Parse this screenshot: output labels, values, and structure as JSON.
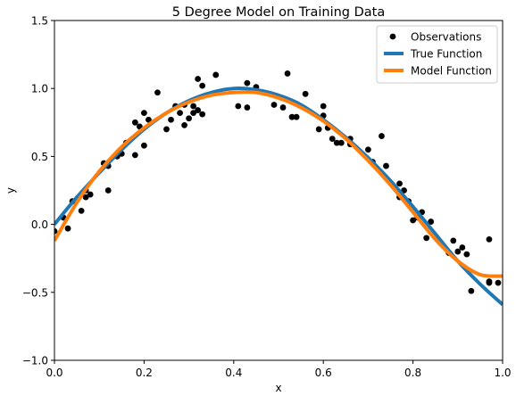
{
  "chart_data": {
    "type": "scatter",
    "title": "5 Degree Model on Training Data",
    "xlabel": "x",
    "ylabel": "y",
    "xlim": [
      0.0,
      1.0
    ],
    "ylim": [
      -1.0,
      1.5
    ],
    "xticks": [
      "0.0",
      "0.2",
      "0.4",
      "0.6",
      "0.8",
      "1.0"
    ],
    "yticks": [
      "−1.0",
      "−0.5",
      "0.0",
      "0.5",
      "1.0",
      "1.5"
    ],
    "xtick_values": [
      0.0,
      0.2,
      0.4,
      0.6,
      0.8,
      1.0
    ],
    "ytick_values": [
      -1.0,
      -0.5,
      0.0,
      0.5,
      1.0,
      1.5
    ],
    "grid": false,
    "legend_position": "top-right",
    "series": [
      {
        "name": "Observations",
        "kind": "scatter",
        "color": "#000000",
        "x": [
          0.0,
          0.02,
          0.03,
          0.04,
          0.06,
          0.07,
          0.07,
          0.08,
          0.11,
          0.12,
          0.12,
          0.14,
          0.15,
          0.16,
          0.18,
          0.18,
          0.19,
          0.2,
          0.2,
          0.21,
          0.23,
          0.25,
          0.26,
          0.27,
          0.28,
          0.29,
          0.29,
          0.3,
          0.31,
          0.31,
          0.32,
          0.32,
          0.33,
          0.33,
          0.36,
          0.41,
          0.43,
          0.43,
          0.45,
          0.49,
          0.51,
          0.52,
          0.53,
          0.54,
          0.56,
          0.59,
          0.6,
          0.6,
          0.61,
          0.62,
          0.63,
          0.64,
          0.66,
          0.66,
          0.7,
          0.71,
          0.73,
          0.74,
          0.77,
          0.77,
          0.78,
          0.79,
          0.8,
          0.81,
          0.82,
          0.83,
          0.84,
          0.88,
          0.89,
          0.9,
          0.91,
          0.92,
          0.93,
          0.97,
          0.97,
          0.97,
          0.99
        ],
        "y": [
          -0.05,
          0.05,
          -0.03,
          0.17,
          0.1,
          0.2,
          0.25,
          0.22,
          0.45,
          0.25,
          0.43,
          0.5,
          0.52,
          0.6,
          0.51,
          0.75,
          0.72,
          0.58,
          0.82,
          0.77,
          0.97,
          0.7,
          0.77,
          0.87,
          0.82,
          0.73,
          0.88,
          0.78,
          0.82,
          0.87,
          1.07,
          0.84,
          0.81,
          1.02,
          1.1,
          0.87,
          0.86,
          1.04,
          1.01,
          0.88,
          0.86,
          1.11,
          0.79,
          0.79,
          0.96,
          0.7,
          0.87,
          0.8,
          0.71,
          0.63,
          0.6,
          0.6,
          0.59,
          0.63,
          0.55,
          0.46,
          0.65,
          0.43,
          0.2,
          0.3,
          0.25,
          0.17,
          0.03,
          0.05,
          0.09,
          -0.1,
          0.02,
          -0.21,
          -0.12,
          -0.2,
          -0.17,
          -0.22,
          -0.49,
          -0.11,
          -0.43,
          -0.42,
          -0.43
        ]
      },
      {
        "name": "True Function",
        "kind": "line",
        "color": "#1f77b4",
        "x": [
          0.0,
          0.05,
          0.1,
          0.15,
          0.2,
          0.25,
          0.3,
          0.35,
          0.4,
          0.45,
          0.5,
          0.55,
          0.6,
          0.65,
          0.7,
          0.75,
          0.8,
          0.85,
          0.9,
          0.95,
          1.0
        ],
        "y": [
          0.0,
          0.2,
          0.38,
          0.55,
          0.7,
          0.82,
          0.91,
          0.97,
          1.0,
          0.99,
          0.95,
          0.88,
          0.77,
          0.64,
          0.49,
          0.32,
          0.13,
          -0.07,
          -0.27,
          -0.44,
          -0.59
        ]
      },
      {
        "name": "Model Function",
        "kind": "line",
        "color": "#ff7f0e",
        "x": [
          0.0,
          0.05,
          0.1,
          0.15,
          0.2,
          0.25,
          0.3,
          0.35,
          0.4,
          0.45,
          0.5,
          0.55,
          0.6,
          0.65,
          0.7,
          0.75,
          0.8,
          0.85,
          0.9,
          0.95,
          1.0
        ],
        "y": [
          -0.12,
          0.16,
          0.39,
          0.57,
          0.71,
          0.82,
          0.9,
          0.95,
          0.97,
          0.97,
          0.93,
          0.86,
          0.76,
          0.63,
          0.47,
          0.29,
          0.09,
          -0.11,
          -0.27,
          -0.37,
          -0.38
        ]
      }
    ]
  }
}
